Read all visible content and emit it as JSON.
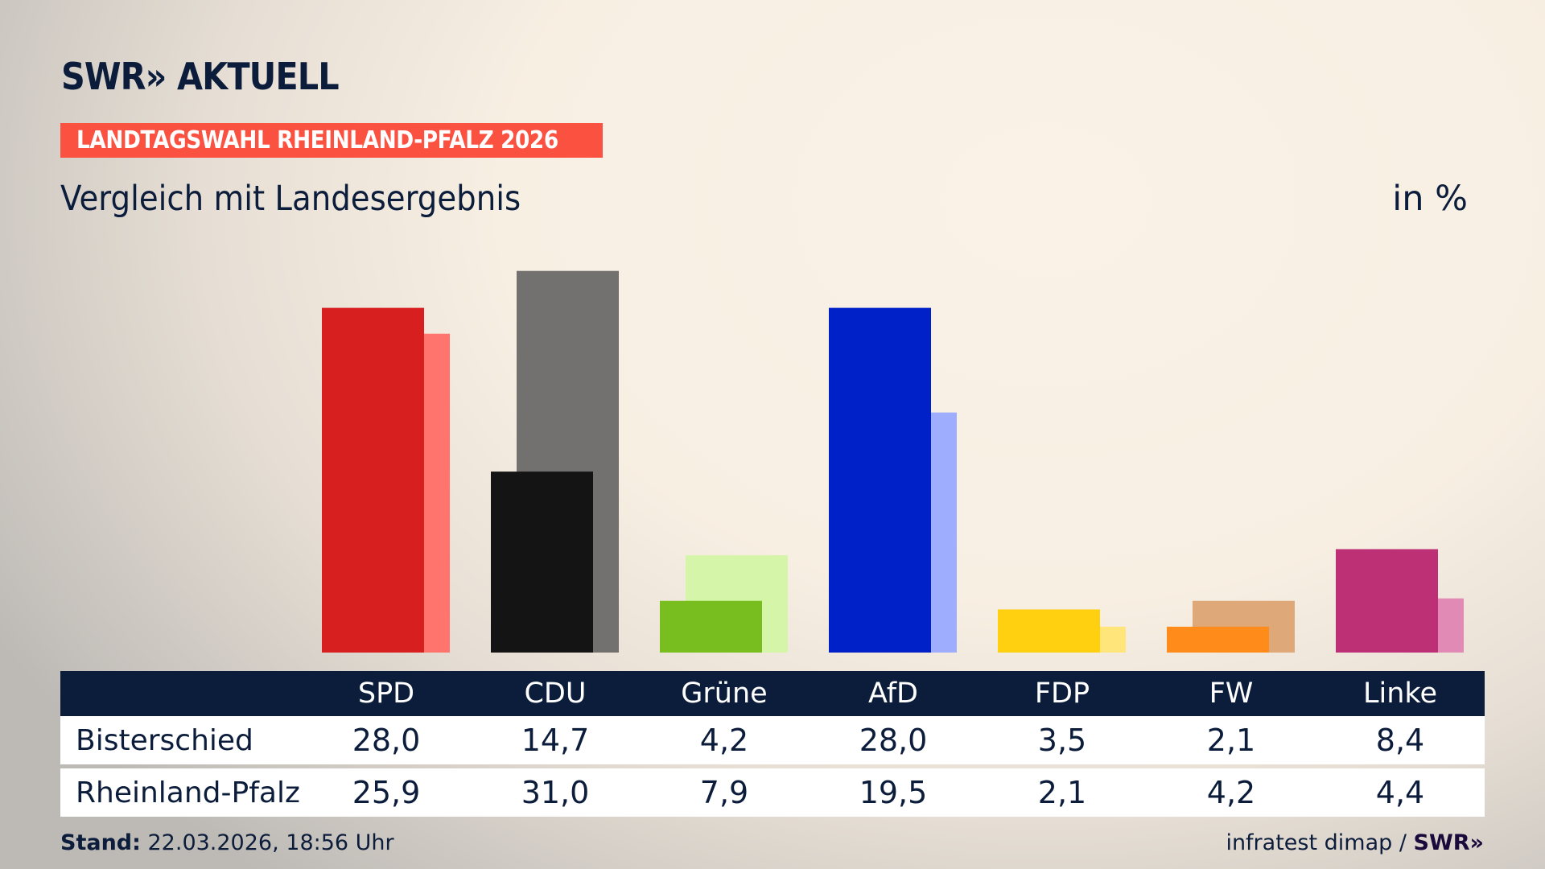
{
  "header": {
    "logo": "SWR» AKTUELL",
    "banner": "LANDTAGSWAHL RHEINLAND-PFALZ 2026",
    "subtitle": "Vergleich mit Landesergebnis",
    "unit": "in %"
  },
  "chart_data": {
    "type": "bar",
    "categories": [
      "SPD",
      "CDU",
      "Grüne",
      "AfD",
      "FDP",
      "FW",
      "Linke"
    ],
    "series": [
      {
        "name": "Bisterschied",
        "values": [
          28.0,
          14.7,
          4.2,
          28.0,
          3.5,
          2.1,
          8.4
        ],
        "colors": [
          "#d81f1f",
          "#141414",
          "#78be1e",
          "#0021c7",
          "#ffd00f",
          "#ff8c1a",
          "#be3075"
        ]
      },
      {
        "name": "Rheinland-Pfalz",
        "values": [
          25.9,
          31.0,
          7.9,
          19.5,
          2.1,
          4.2,
          4.4
        ],
        "colors": [
          "#ff746c",
          "#737170",
          "#d5f5a8",
          "#9fadff",
          "#ffe57a",
          "#dfa878",
          "#e08ab5"
        ]
      }
    ],
    "ylim": [
      0,
      31
    ]
  },
  "table": {
    "headers": [
      "SPD",
      "CDU",
      "Grüne",
      "AfD",
      "FDP",
      "FW",
      "Linke"
    ],
    "rows": [
      {
        "label": "Bisterschied",
        "values": [
          "28,0",
          "14,7",
          "4,2",
          "28,0",
          "3,5",
          "2,1",
          "8,4"
        ]
      },
      {
        "label": "Rheinland-Pfalz",
        "values": [
          "25,9",
          "31,0",
          "7,9",
          "19,5",
          "2,1",
          "4,2",
          "4,4"
        ]
      }
    ]
  },
  "footer": {
    "stand_label": "Stand:",
    "stand_value": " 22.03.2026, 18:56 Uhr",
    "source": "infratest dimap / ",
    "source_logo": "SWR»"
  },
  "colors": {
    "header_bg": "#0c1d3c",
    "banner": "#fb5140"
  }
}
